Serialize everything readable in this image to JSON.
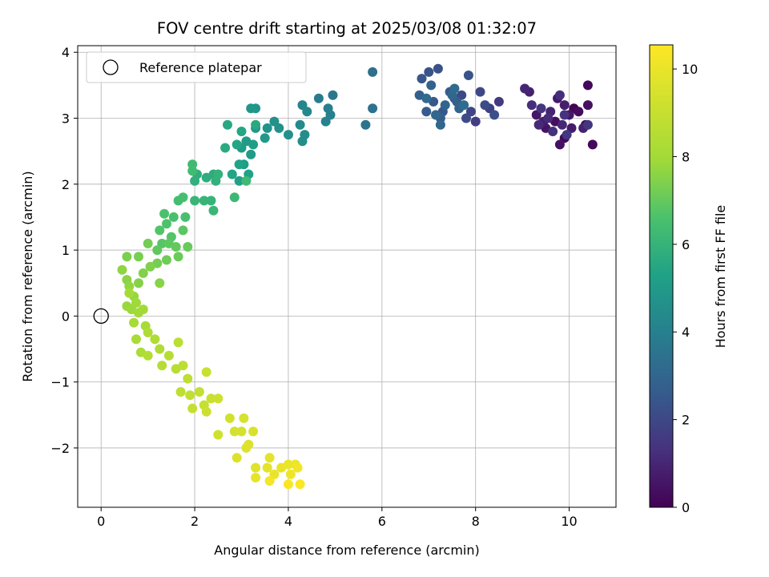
{
  "chart_data": {
    "type": "scatter",
    "title": "FOV centre drift starting at 2025/03/08 01:32:07",
    "xlabel": "Angular distance from reference (arcmin)",
    "ylabel": "Rotation from reference (arcmin)",
    "xlim": [
      -0.5,
      11.0
    ],
    "ylim": [
      -2.9,
      4.1
    ],
    "xticks": [
      "0",
      "2",
      "4",
      "6",
      "8",
      "10"
    ],
    "yticks": [
      "−2",
      "−1",
      "0",
      "1",
      "2",
      "3",
      "4"
    ],
    "grid": true,
    "legend": {
      "placement": "top-left",
      "entries": [
        "Reference platepar"
      ]
    },
    "reference_point": {
      "x": 0,
      "y": 0
    },
    "colorbar": {
      "label": "Hours from first FF file",
      "colormap": "viridis",
      "range": [
        0,
        10.55
      ],
      "ticks": [
        "0",
        "2",
        "4",
        "6",
        "8",
        "10"
      ]
    },
    "points": [
      [
        10.1,
        3.15,
        0.05
      ],
      [
        10.35,
        2.9,
        0.1
      ],
      [
        10.5,
        2.6,
        0.15
      ],
      [
        10.4,
        3.5,
        0.2
      ],
      [
        9.9,
        2.7,
        0.25
      ],
      [
        10.2,
        3.1,
        0.3
      ],
      [
        9.7,
        2.95,
        0.35
      ],
      [
        10.4,
        3.2,
        0.4
      ],
      [
        9.8,
        2.6,
        0.45
      ],
      [
        9.5,
        2.85,
        0.5
      ],
      [
        10.0,
        3.05,
        0.55
      ],
      [
        9.3,
        3.05,
        0.6
      ],
      [
        9.75,
        3.3,
        0.65
      ],
      [
        10.05,
        2.85,
        0.7
      ],
      [
        9.45,
        2.95,
        0.75
      ],
      [
        9.9,
        3.2,
        0.8
      ],
      [
        9.15,
        3.4,
        0.85
      ],
      [
        10.3,
        2.85,
        0.9
      ],
      [
        9.6,
        3.1,
        0.95
      ],
      [
        9.05,
        3.45,
        1.0
      ],
      [
        9.85,
        2.9,
        1.05
      ],
      [
        9.35,
        2.9,
        1.1
      ],
      [
        9.55,
        3.0,
        1.15
      ],
      [
        9.8,
        3.35,
        1.2
      ],
      [
        9.2,
        3.2,
        1.25
      ],
      [
        9.65,
        2.8,
        1.3
      ],
      [
        9.9,
        3.05,
        1.35
      ],
      [
        9.4,
        3.15,
        1.4
      ],
      [
        10.4,
        2.9,
        1.45
      ],
      [
        9.95,
        2.75,
        1.5
      ],
      [
        8.5,
        3.25,
        1.6
      ],
      [
        8.0,
        2.95,
        1.7
      ],
      [
        8.3,
        3.15,
        1.8
      ],
      [
        7.9,
        3.1,
        1.9
      ],
      [
        8.1,
        3.4,
        2.0
      ],
      [
        7.7,
        3.35,
        2.05
      ],
      [
        8.2,
        3.2,
        2.1
      ],
      [
        7.8,
        3.0,
        2.15
      ],
      [
        7.55,
        3.3,
        2.2
      ],
      [
        8.4,
        3.05,
        2.25
      ],
      [
        7.2,
        3.75,
        2.3
      ],
      [
        7.0,
        3.7,
        2.35
      ],
      [
        7.85,
        3.65,
        2.4
      ],
      [
        6.85,
        3.6,
        2.45
      ],
      [
        7.3,
        3.1,
        2.5
      ],
      [
        7.1,
        3.25,
        2.55
      ],
      [
        7.45,
        3.4,
        2.6
      ],
      [
        6.95,
        3.1,
        2.65
      ],
      [
        7.25,
        3.0,
        2.7
      ],
      [
        7.6,
        3.25,
        2.75
      ],
      [
        6.8,
        3.35,
        2.8
      ],
      [
        7.05,
        3.5,
        2.85
      ],
      [
        7.65,
        3.15,
        2.9
      ],
      [
        7.35,
        3.2,
        2.95
      ],
      [
        7.15,
        3.05,
        3.0
      ],
      [
        7.5,
        3.35,
        3.05
      ],
      [
        7.25,
        2.9,
        3.1
      ],
      [
        6.95,
        3.3,
        3.15
      ],
      [
        7.55,
        3.45,
        3.2
      ],
      [
        7.75,
        3.2,
        3.25
      ],
      [
        5.8,
        3.7,
        3.35
      ],
      [
        5.8,
        3.15,
        3.45
      ],
      [
        5.65,
        2.9,
        3.55
      ],
      [
        4.95,
        3.35,
        3.7
      ],
      [
        4.65,
        3.3,
        3.8
      ],
      [
        4.85,
        3.15,
        3.9
      ],
      [
        4.9,
        3.05,
        4.0
      ],
      [
        4.8,
        2.95,
        4.1
      ],
      [
        4.3,
        3.2,
        4.2
      ],
      [
        4.4,
        3.1,
        4.3
      ],
      [
        4.25,
        2.9,
        4.4
      ],
      [
        4.3,
        2.65,
        4.5
      ],
      [
        4.35,
        2.75,
        4.55
      ],
      [
        4.0,
        2.75,
        4.6
      ],
      [
        3.8,
        2.85,
        4.65
      ],
      [
        3.7,
        2.95,
        4.7
      ],
      [
        3.55,
        2.85,
        4.75
      ],
      [
        3.3,
        3.15,
        4.8
      ],
      [
        3.2,
        3.15,
        4.85
      ],
      [
        3.3,
        2.85,
        4.9
      ],
      [
        3.5,
        2.7,
        4.95
      ],
      [
        3.1,
        2.65,
        5.0
      ],
      [
        3.2,
        2.45,
        5.05
      ],
      [
        3.0,
        2.55,
        5.1
      ],
      [
        3.25,
        2.6,
        5.15
      ],
      [
        3.05,
        2.3,
        5.2
      ],
      [
        2.95,
        2.05,
        5.25
      ],
      [
        3.15,
        2.15,
        5.3
      ],
      [
        2.95,
        2.3,
        5.35
      ],
      [
        2.8,
        2.15,
        5.4
      ],
      [
        2.9,
        2.6,
        5.45
      ],
      [
        3.0,
        2.8,
        5.5
      ],
      [
        2.7,
        2.9,
        5.55
      ],
      [
        3.3,
        2.9,
        5.6
      ],
      [
        2.65,
        2.55,
        5.65
      ],
      [
        2.4,
        2.15,
        5.7
      ],
      [
        2.25,
        2.1,
        5.75
      ],
      [
        2.05,
        2.15,
        5.8
      ],
      [
        2.0,
        2.05,
        5.85
      ],
      [
        2.45,
        2.05,
        5.9
      ],
      [
        2.5,
        2.15,
        5.95
      ],
      [
        2.35,
        1.75,
        6.0
      ],
      [
        2.2,
        1.75,
        6.05
      ],
      [
        2.0,
        1.75,
        6.1
      ],
      [
        2.4,
        1.6,
        6.15
      ],
      [
        2.85,
        1.8,
        6.2
      ],
      [
        3.1,
        2.05,
        6.25
      ],
      [
        1.95,
        2.3,
        6.3
      ],
      [
        1.95,
        2.2,
        6.35
      ],
      [
        1.65,
        1.75,
        6.4
      ],
      [
        1.75,
        1.8,
        6.45
      ],
      [
        1.8,
        1.5,
        6.5
      ],
      [
        1.55,
        1.5,
        6.55
      ],
      [
        1.35,
        1.55,
        6.6
      ],
      [
        1.4,
        1.4,
        6.65
      ],
      [
        1.25,
        1.3,
        6.7
      ],
      [
        1.5,
        1.2,
        6.75
      ],
      [
        1.3,
        1.1,
        6.8
      ],
      [
        1.75,
        1.3,
        6.85
      ],
      [
        1.45,
        1.1,
        6.9
      ],
      [
        1.2,
        1.0,
        6.95
      ],
      [
        1.6,
        1.05,
        7.0
      ],
      [
        1.85,
        1.05,
        7.05
      ],
      [
        1.65,
        0.9,
        7.1
      ],
      [
        1.4,
        0.85,
        7.15
      ],
      [
        1.0,
        1.1,
        7.2
      ],
      [
        1.2,
        0.8,
        7.25
      ],
      [
        0.8,
        0.9,
        7.3
      ],
      [
        0.55,
        0.9,
        7.35
      ],
      [
        1.05,
        0.75,
        7.4
      ],
      [
        0.9,
        0.65,
        7.45
      ],
      [
        0.8,
        0.5,
        7.5
      ],
      [
        1.25,
        0.5,
        7.55
      ],
      [
        0.55,
        0.55,
        7.6
      ],
      [
        0.45,
        0.7,
        7.65
      ],
      [
        0.6,
        0.45,
        7.7
      ],
      [
        0.7,
        0.3,
        7.75
      ],
      [
        0.55,
        0.15,
        7.8
      ],
      [
        0.65,
        0.1,
        7.85
      ],
      [
        0.75,
        0.2,
        7.9
      ],
      [
        0.8,
        0.05,
        7.95
      ],
      [
        0.9,
        0.1,
        8.0
      ],
      [
        0.6,
        0.35,
        8.05
      ],
      [
        0.7,
        -0.1,
        8.1
      ],
      [
        0.95,
        -0.15,
        8.15
      ],
      [
        0.75,
        -0.35,
        8.2
      ],
      [
        0.85,
        -0.55,
        8.25
      ],
      [
        1.0,
        -0.25,
        8.3
      ],
      [
        1.15,
        -0.35,
        8.35
      ],
      [
        1.25,
        -0.5,
        8.4
      ],
      [
        1.0,
        -0.6,
        8.45
      ],
      [
        1.3,
        -0.75,
        8.5
      ],
      [
        1.45,
        -0.6,
        8.55
      ],
      [
        1.6,
        -0.8,
        8.6
      ],
      [
        1.65,
        -0.4,
        8.65
      ],
      [
        1.75,
        -0.75,
        8.7
      ],
      [
        1.85,
        -0.95,
        8.75
      ],
      [
        1.7,
        -1.15,
        8.8
      ],
      [
        1.9,
        -1.2,
        8.85
      ],
      [
        2.1,
        -1.15,
        8.9
      ],
      [
        1.95,
        -1.4,
        8.95
      ],
      [
        2.2,
        -1.35,
        9.0
      ],
      [
        2.25,
        -0.85,
        9.05
      ],
      [
        2.35,
        -1.25,
        9.1
      ],
      [
        2.25,
        -1.45,
        9.15
      ],
      [
        2.5,
        -1.25,
        9.2
      ],
      [
        2.5,
        -1.8,
        9.25
      ],
      [
        2.75,
        -1.55,
        9.3
      ],
      [
        2.85,
        -1.75,
        9.35
      ],
      [
        3.0,
        -1.75,
        9.4
      ],
      [
        3.05,
        -1.55,
        9.45
      ],
      [
        3.25,
        -1.75,
        9.5
      ],
      [
        3.15,
        -1.95,
        9.55
      ],
      [
        2.9,
        -2.15,
        9.6
      ],
      [
        3.1,
        -2.0,
        9.65
      ],
      [
        3.3,
        -2.3,
        9.7
      ],
      [
        3.55,
        -2.3,
        9.8
      ],
      [
        3.6,
        -2.15,
        9.85
      ],
      [
        3.3,
        -2.45,
        9.9
      ],
      [
        3.7,
        -2.4,
        9.95
      ],
      [
        3.85,
        -2.3,
        10.0
      ],
      [
        4.0,
        -2.25,
        10.05
      ],
      [
        4.15,
        -2.25,
        10.1
      ],
      [
        4.05,
        -2.4,
        10.15
      ],
      [
        4.2,
        -2.3,
        10.2
      ],
      [
        3.6,
        -2.5,
        10.3
      ],
      [
        4.0,
        -2.55,
        10.4
      ],
      [
        4.25,
        -2.55,
        10.5
      ]
    ]
  }
}
